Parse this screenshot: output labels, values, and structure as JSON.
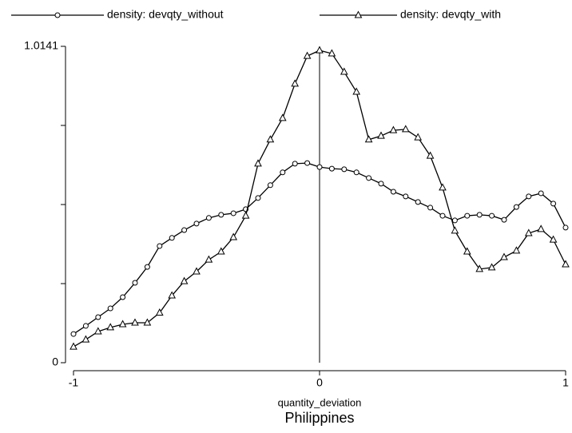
{
  "chart_data": {
    "type": "line",
    "title": "Philippines",
    "x_label": "quantity_deviation",
    "x": [
      -1,
      -0.95,
      -0.9,
      -0.85,
      -0.8,
      -0.75,
      -0.7,
      -0.65,
      -0.6,
      -0.55,
      -0.5,
      -0.45,
      -0.4,
      -0.35,
      -0.3,
      -0.25,
      -0.2,
      -0.15,
      -0.1,
      -0.05,
      0,
      0.05,
      0.1,
      0.15,
      0.2,
      0.25,
      0.3,
      0.35,
      0.4,
      0.45,
      0.5,
      0.55,
      0.6,
      0.65,
      0.7,
      0.75,
      0.8,
      0.85,
      0.9,
      0.95,
      1
    ],
    "series": [
      {
        "name": "density: devqty_without",
        "color": "#000000",
        "marker": "circle",
        "values": [
          0.092,
          0.118,
          0.146,
          0.174,
          0.21,
          0.256,
          0.307,
          0.374,
          0.4,
          0.425,
          0.446,
          0.464,
          0.474,
          0.479,
          0.492,
          0.528,
          0.569,
          0.61,
          0.638,
          0.64,
          0.627,
          0.622,
          0.62,
          0.61,
          0.592,
          0.574,
          0.548,
          0.533,
          0.515,
          0.497,
          0.471,
          0.456,
          0.471,
          0.474,
          0.471,
          0.458,
          0.499,
          0.533,
          0.543,
          0.51,
          0.433
        ]
      },
      {
        "name": "density: devqty_with",
        "color": "#000000",
        "marker": "triangle",
        "values": [
          0.051,
          0.074,
          0.1,
          0.113,
          0.123,
          0.128,
          0.128,
          0.16,
          0.215,
          0.261,
          0.292,
          0.33,
          0.356,
          0.402,
          0.471,
          0.638,
          0.715,
          0.784,
          0.894,
          0.983,
          1.001,
          0.991,
          0.932,
          0.868,
          0.715,
          0.727,
          0.745,
          0.748,
          0.722,
          0.663,
          0.561,
          0.423,
          0.356,
          0.3,
          0.305,
          0.338,
          0.359,
          0.415,
          0.428,
          0.394,
          0.315
        ]
      }
    ],
    "xlim": [
      -1,
      1
    ],
    "xticks": [
      -1,
      0,
      1
    ],
    "ylim": [
      0,
      1.0141
    ],
    "yticks": [
      0,
      1.0141
    ],
    "yminor": [
      0.2535,
      0.507,
      0.7606
    ],
    "xline": 0,
    "legend": "top"
  }
}
